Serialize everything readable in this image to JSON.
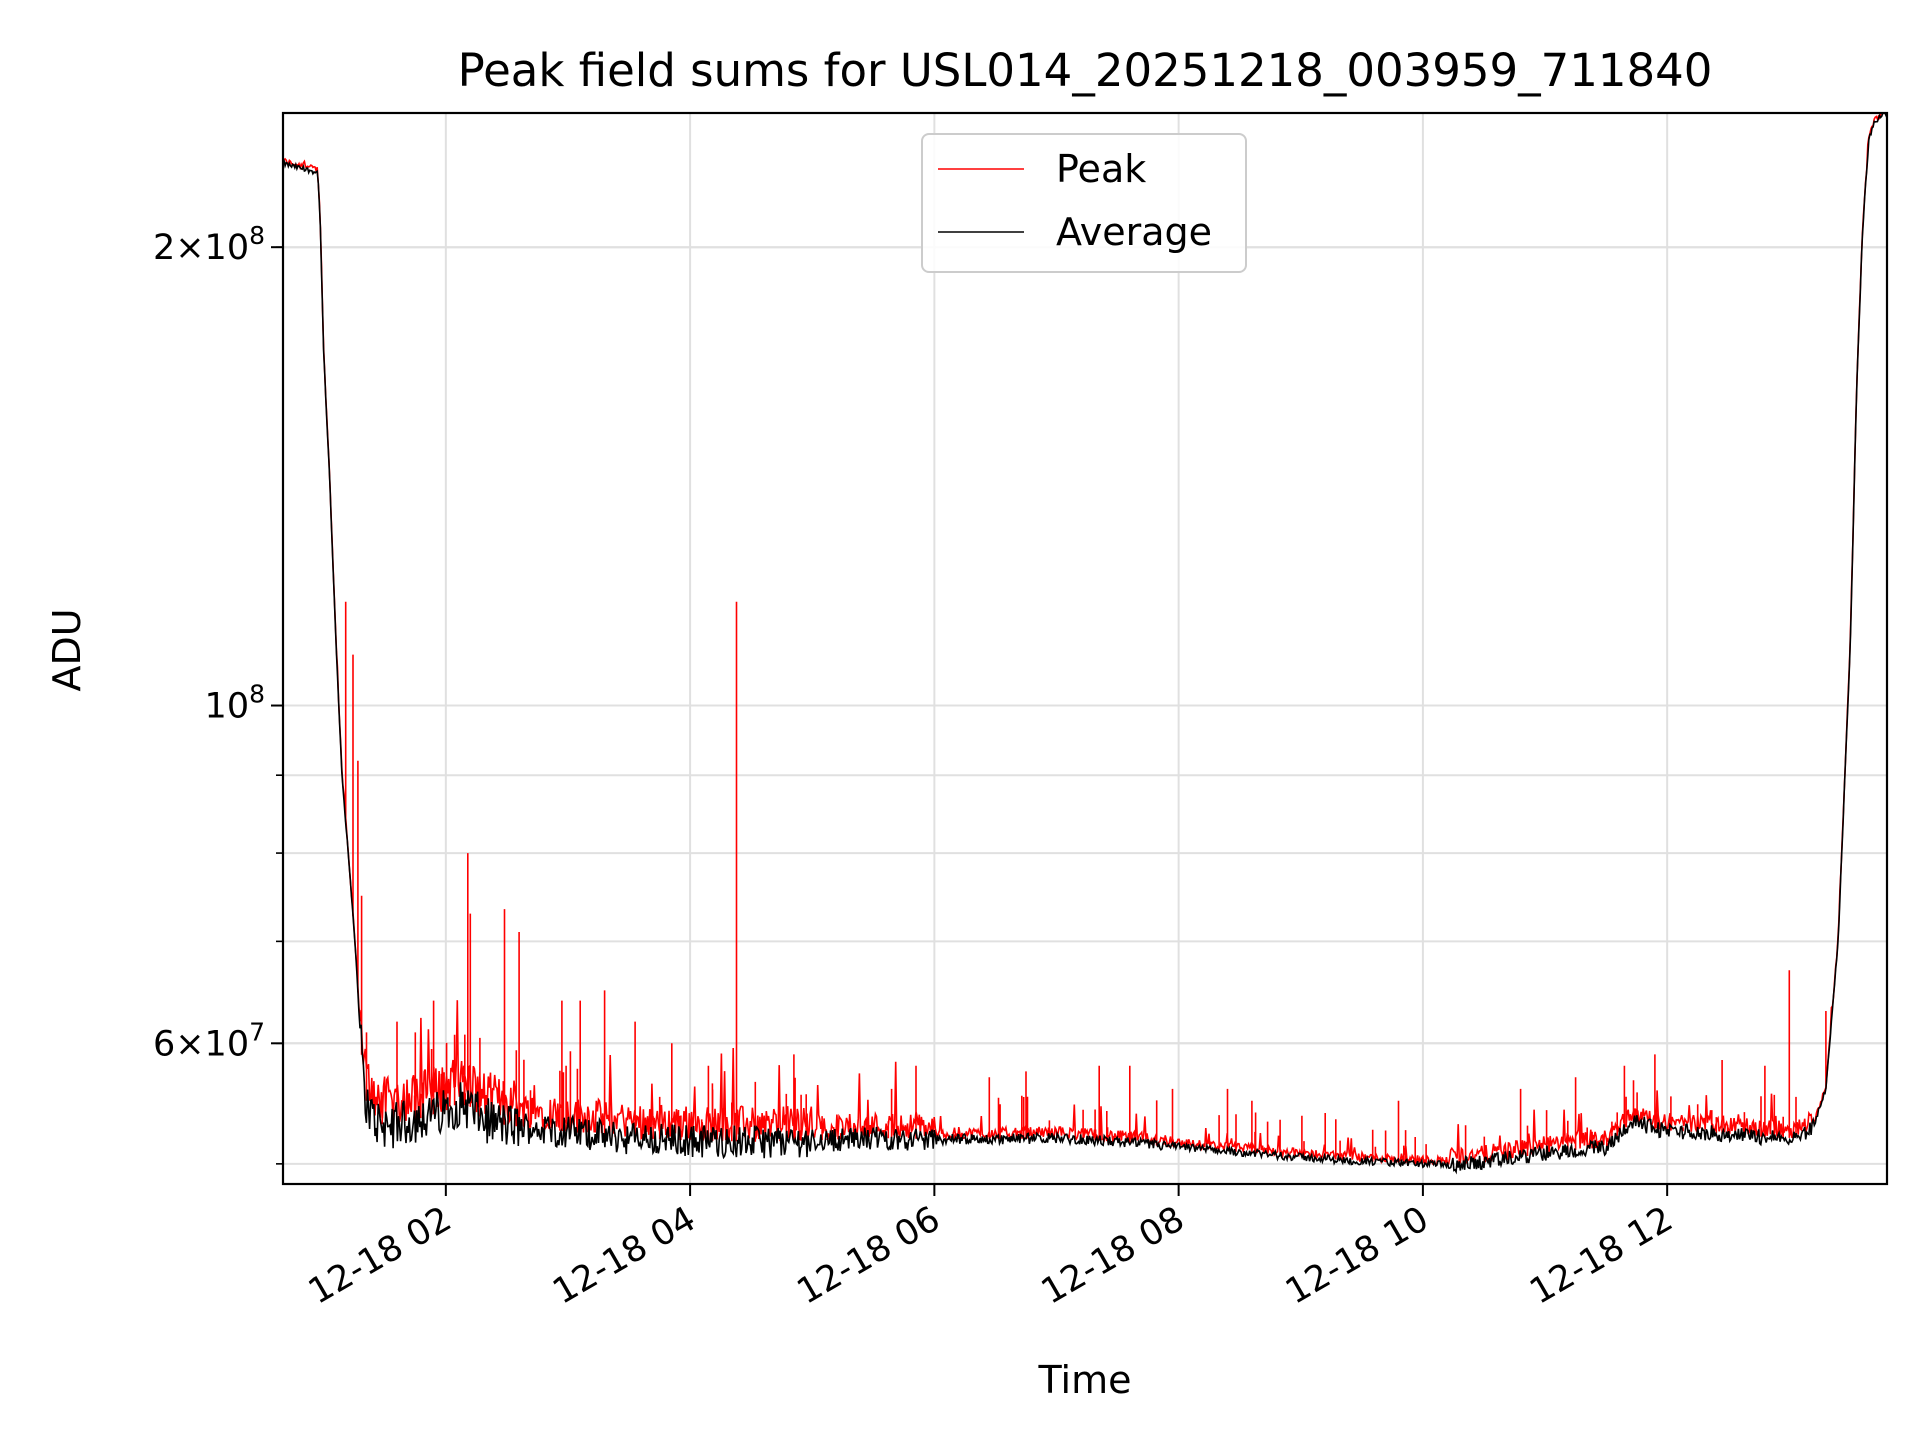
{
  "chart_data": {
    "type": "line",
    "title": "Peak field sums for USL014_20251218_003959_711840",
    "xlabel": "Time",
    "ylabel": "ADU",
    "yscale": "log",
    "ylim": [
      48500000,
      245000000
    ],
    "xlim_hours": [
      0.6667,
      13.8
    ],
    "x_ticks": [
      {
        "hour": 2,
        "label": "12-18 02"
      },
      {
        "hour": 4,
        "label": "12-18 04"
      },
      {
        "hour": 6,
        "label": "12-18 06"
      },
      {
        "hour": 8,
        "label": "12-18 08"
      },
      {
        "hour": 10,
        "label": "12-18 10"
      },
      {
        "hour": 12,
        "label": "12-18 12"
      }
    ],
    "y_ticks_major": [
      {
        "value": 100000000,
        "base": "10",
        "exp": "8"
      },
      {
        "value": 200000000,
        "mant": "2",
        "base": "10",
        "exp": "8"
      },
      {
        "value": 60000000,
        "mant": "6",
        "base": "10",
        "exp": "7"
      }
    ],
    "y_ticks_minor": [
      50000000,
      60000000,
      70000000,
      80000000,
      90000000,
      200000000
    ],
    "grid": true,
    "legend": {
      "position": "top-center",
      "entries": [
        "Peak",
        "Average"
      ]
    },
    "colors": {
      "peak": "#ff0000",
      "average": "#000000",
      "grid": "#e0e0e0",
      "legend_border": "#cccccc"
    },
    "series": [
      {
        "name": "Average",
        "x": [
          0.667,
          0.75,
          0.85,
          0.95,
          0.97,
          1.0,
          1.05,
          1.1,
          1.15,
          1.2,
          1.25,
          1.3,
          1.32,
          1.35,
          1.38,
          1.4,
          1.45,
          1.5,
          1.55,
          1.6,
          1.7,
          1.8,
          1.9,
          2.0,
          2.1,
          2.2,
          2.3,
          2.5,
          3.0,
          3.5,
          4.0,
          4.5,
          5.0,
          5.5,
          6.0,
          6.5,
          7.0,
          7.5,
          8.0,
          8.5,
          9.0,
          9.5,
          10.0,
          10.2,
          10.5,
          11.0,
          11.5,
          11.7,
          11.75,
          11.9,
          12.0,
          12.5,
          12.9,
          13.0,
          13.1,
          13.2,
          13.3,
          13.4,
          13.5,
          13.55,
          13.6,
          13.65,
          13.7,
          13.8
        ],
        "y": [
          227000000,
          226000000,
          225000000,
          224000000,
          210000000,
          170000000,
          140000000,
          110000000,
          90000000,
          80000000,
          71000000,
          61000000,
          57000000,
          55000000,
          54000000,
          53600000,
          53200000,
          53000000,
          53000000,
          53100000,
          53300000,
          53600000,
          53900000,
          54200000,
          54800000,
          54500000,
          53500000,
          53000000,
          52500000,
          52000000,
          51800000,
          51700000,
          51800000,
          52000000,
          51900000,
          51900000,
          52000000,
          51700000,
          51300000,
          50900000,
          50500000,
          50200000,
          50000000,
          49900000,
          50100000,
          50800000,
          51300000,
          53200000,
          53300000,
          52700000,
          52600000,
          52300000,
          52000000,
          52000000,
          52200000,
          53000000,
          56000000,
          70000000,
          110000000,
          160000000,
          205000000,
          235000000,
          242000000,
          245000000
        ]
      },
      {
        "name": "Peak",
        "x": [
          1.18,
          1.24,
          1.28,
          1.31,
          1.35,
          1.6,
          1.75,
          1.9,
          2.18,
          2.2,
          2.48,
          2.6,
          2.95,
          3.1,
          3.3,
          3.55,
          3.85,
          4.15,
          4.38,
          4.85,
          5.65,
          5.85,
          6.45,
          6.75,
          7.35,
          7.6,
          7.95,
          8.4,
          8.6,
          9.2,
          9.8,
          10.35,
          10.8,
          11.25,
          11.65,
          11.9,
          12.45,
          12.8,
          13.0,
          13.3
        ],
        "spike": [
          117000000,
          108000000,
          92000000,
          75000000,
          61000000,
          62000000,
          61000000,
          64000000,
          80000000,
          73000000,
          73500000,
          71000000,
          64000000,
          64000000,
          65000000,
          62000000,
          60000000,
          58000000,
          117000000,
          59000000,
          56000000,
          58000000,
          57000000,
          57500000,
          58000000,
          58000000,
          56000000,
          56000000,
          55000000,
          54000000,
          55000000,
          53000000,
          56000000,
          57000000,
          58000000,
          59000000,
          58500000,
          58000000,
          67000000,
          63000000
        ]
      }
    ]
  }
}
